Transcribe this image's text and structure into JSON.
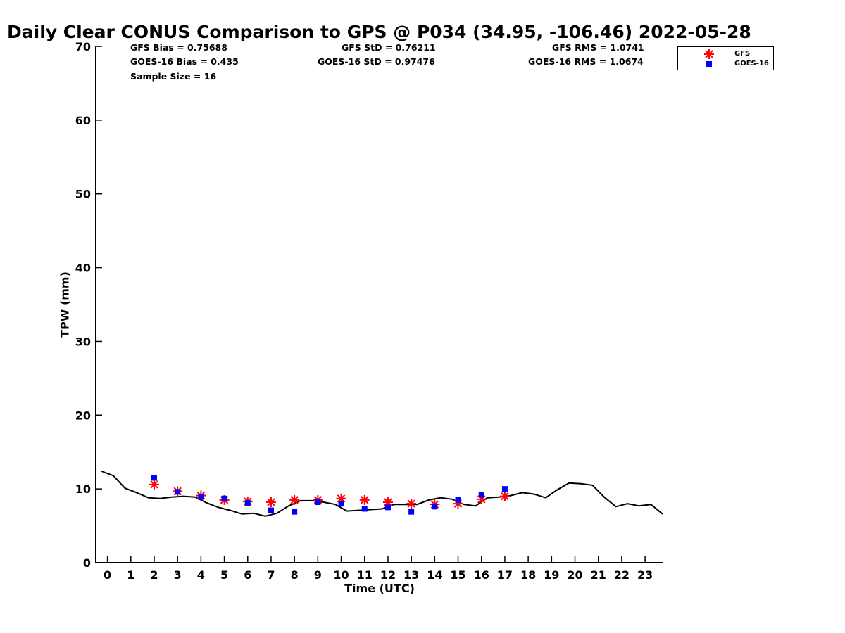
{
  "chart_data": {
    "type": "line",
    "title": "Daily Clear CONUS Comparison to GPS @ P034 (34.95, -106.46) 2022-05-28",
    "xlabel": "Time (UTC)",
    "ylabel": "TPW (mm)",
    "xlim": [
      -0.5,
      23.75
    ],
    "ylim": [
      0,
      70
    ],
    "x_ticks": [
      "0",
      "1",
      "2",
      "3",
      "4",
      "5",
      "6",
      "7",
      "8",
      "9",
      "10",
      "11",
      "12",
      "13",
      "14",
      "15",
      "16",
      "17",
      "18",
      "19",
      "20",
      "21",
      "22",
      "23"
    ],
    "y_ticks": [
      "0",
      "10",
      "20",
      "30",
      "40",
      "50",
      "60",
      "70"
    ],
    "grid": false,
    "legend": {
      "position": "top-right",
      "entries": [
        {
          "name": "GFS",
          "marker": "asterisk",
          "color": "#ff0000"
        },
        {
          "name": "GOES-16",
          "marker": "square",
          "color": "#0000ff"
        }
      ]
    },
    "stats": {
      "gfs_bias": "GFS Bias = 0.75688",
      "goes_bias": "GOES-16 Bias = 0.435",
      "sample_size": "Sample Size = 16",
      "gfs_std": "GFS StD = 0.76211",
      "goes_std": "GOES-16 StD = 0.97476",
      "gfs_rms": "GFS RMS = 1.0741",
      "goes_rms": "GOES-16 RMS = 1.0674"
    },
    "series": [
      {
        "key": "gps",
        "style": "line",
        "color": "#000000",
        "x": [
          -0.25,
          0.25,
          0.75,
          1.25,
          1.75,
          2.25,
          2.75,
          3.25,
          3.75,
          4.25,
          4.75,
          5.25,
          5.75,
          6.25,
          6.75,
          7.25,
          7.75,
          8.25,
          8.75,
          9.25,
          9.75,
          10.25,
          10.75,
          11.25,
          11.75,
          12.25,
          12.75,
          13.25,
          13.75,
          14.25,
          14.75,
          15.25,
          15.75,
          16.25,
          16.75,
          17.25,
          17.75,
          18.25,
          18.75,
          19.25,
          19.75,
          20.25,
          20.75,
          21.25,
          21.75,
          22.25,
          22.75,
          23.25,
          23.75
        ],
        "y": [
          12.4,
          11.8,
          10.1,
          9.5,
          8.8,
          8.7,
          8.9,
          9.0,
          8.9,
          8.1,
          7.5,
          7.1,
          6.6,
          6.7,
          6.3,
          6.7,
          7.7,
          8.4,
          8.4,
          8.2,
          7.9,
          7.0,
          7.1,
          7.2,
          7.3,
          7.9,
          7.9,
          7.9,
          8.5,
          8.8,
          8.6,
          7.9,
          7.7,
          8.8,
          8.9,
          9.1,
          9.5,
          9.3,
          8.8,
          9.9,
          10.8,
          10.7,
          10.5,
          8.9,
          7.6,
          8.0,
          7.7,
          7.9,
          6.6
        ]
      },
      {
        "key": "gfs",
        "name": "GFS",
        "style": "asterisk",
        "color": "#ff0000",
        "x": [
          2,
          3,
          4,
          5,
          6,
          7,
          8,
          9,
          10,
          11,
          12,
          13,
          14,
          15,
          16,
          17
        ],
        "y": [
          10.6,
          9.7,
          9.1,
          8.5,
          8.3,
          8.2,
          8.5,
          8.5,
          8.7,
          8.5,
          8.2,
          8.0,
          7.9,
          8.0,
          8.6,
          9.0
        ]
      },
      {
        "key": "goes",
        "name": "GOES-16",
        "style": "square",
        "color": "#0000ff",
        "x": [
          2,
          3,
          4,
          5,
          6,
          7,
          8,
          9,
          10,
          11,
          12,
          13,
          14,
          15,
          16,
          17
        ],
        "y": [
          11.5,
          9.6,
          8.9,
          8.7,
          8.1,
          7.1,
          6.9,
          8.2,
          8.0,
          7.3,
          7.5,
          6.9,
          7.6,
          8.5,
          9.2,
          10.0
        ]
      }
    ]
  }
}
